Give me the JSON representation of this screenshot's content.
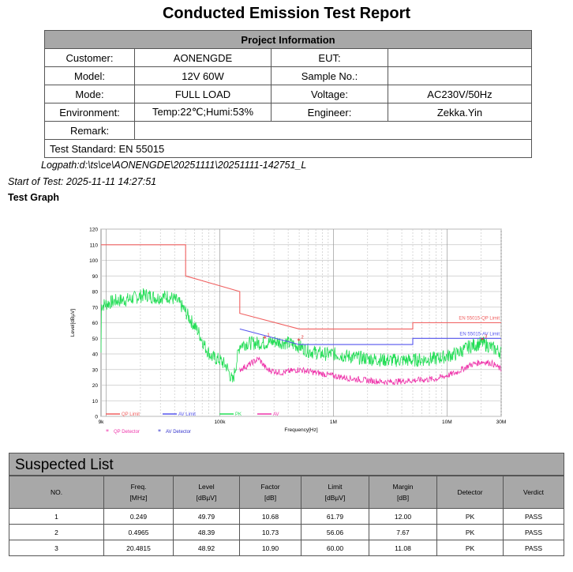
{
  "report": {
    "title": "Conducted Emission Test Report",
    "project_heading": "Project Information",
    "rows": [
      {
        "k1": "Customer:",
        "v1": "AONENGDE",
        "k2": "EUT:",
        "v2": ""
      },
      {
        "k1": "Model:",
        "v1": "12V 60W",
        "k2": "Sample No.:",
        "v2": ""
      },
      {
        "k1": "Mode:",
        "v1": "FULL LOAD",
        "k2": "Voltage:",
        "v2": "AC230V/50Hz"
      },
      {
        "k1": "Environment:",
        "v1": "Temp:22℃;Humi:53%",
        "k2": "Engineer:",
        "v2": "Zekka.Yin"
      }
    ],
    "remark_label": "Remark:",
    "remark_value": "",
    "test_standard": "Test Standard: EN 55015",
    "logpath": "Logpath:d:\\ts\\ce\\AONENGDE\\20251111\\20251111-142751_L",
    "start": "Start of Test: 2025-11-11 14:27:51",
    "graph_heading": "Test Graph"
  },
  "chart_data": {
    "type": "line",
    "xlabel": "Frequency[Hz]",
    "ylabel": "Level[dBµV]",
    "xscale": "log",
    "xlim": [
      9000,
      30000000
    ],
    "ylim": [
      0,
      120
    ],
    "x_ticks": [
      {
        "v": 9000,
        "label": "9k"
      },
      {
        "v": 100000,
        "label": "100k"
      },
      {
        "v": 1000000,
        "label": "1M"
      },
      {
        "v": 10000000,
        "label": "10M"
      },
      {
        "v": 30000000,
        "label": "30M"
      }
    ],
    "y_ticks": [
      0,
      10,
      20,
      30,
      40,
      50,
      60,
      70,
      80,
      90,
      100,
      110,
      120
    ],
    "grid": true,
    "colors": {
      "qp_limit": "#f06060",
      "av_limit": "#5555ee",
      "peak": "#22dd55",
      "av_trace": "#ee33aa",
      "qp_marker": "#e01818",
      "av_marker": "#2222cc"
    },
    "series": [
      {
        "name": "EN 55015-QP Limit",
        "points": [
          [
            9000,
            110
          ],
          [
            50000,
            110
          ],
          [
            50000,
            90
          ],
          [
            150000,
            80
          ],
          [
            150000,
            66
          ],
          [
            500000,
            56
          ],
          [
            5000000,
            56
          ],
          [
            5000000,
            60
          ],
          [
            30000000,
            60
          ]
        ]
      },
      {
        "name": "EN 55015-AV Limit",
        "points": [
          [
            150000,
            56
          ],
          [
            500000,
            46
          ],
          [
            5000000,
            46
          ],
          [
            5000000,
            50
          ],
          [
            30000000,
            50
          ]
        ]
      }
    ],
    "peak_trace": [
      [
        9000,
        71
      ],
      [
        12000,
        74
      ],
      [
        16000,
        75
      ],
      [
        22000,
        78
      ],
      [
        28000,
        76
      ],
      [
        35000,
        77
      ],
      [
        42000,
        74
      ],
      [
        48000,
        69
      ],
      [
        55000,
        62
      ],
      [
        65000,
        54
      ],
      [
        75000,
        44
      ],
      [
        85000,
        38
      ],
      [
        100000,
        36
      ],
      [
        115000,
        32
      ],
      [
        130000,
        22
      ],
      [
        150000,
        46
      ],
      [
        180000,
        47
      ],
      [
        249000,
        47
      ],
      [
        300000,
        48
      ],
      [
        400000,
        47
      ],
      [
        500000,
        45
      ],
      [
        600000,
        42
      ],
      [
        800000,
        40
      ],
      [
        1000000,
        40
      ],
      [
        1500000,
        38
      ],
      [
        2000000,
        37
      ],
      [
        3000000,
        36
      ],
      [
        5000000,
        36
      ],
      [
        8000000,
        37
      ],
      [
        12000000,
        40
      ],
      [
        16000000,
        45
      ],
      [
        20480000,
        47
      ],
      [
        25000000,
        44
      ],
      [
        30000000,
        41
      ]
    ],
    "av_trace": [
      [
        150000,
        30
      ],
      [
        180000,
        33
      ],
      [
        220000,
        37
      ],
      [
        260000,
        30
      ],
      [
        350000,
        28
      ],
      [
        497000,
        30
      ],
      [
        700000,
        28
      ],
      [
        1000000,
        26
      ],
      [
        1500000,
        24
      ],
      [
        2000000,
        23
      ],
      [
        3000000,
        22
      ],
      [
        5000000,
        23
      ],
      [
        8000000,
        24
      ],
      [
        12000000,
        28
      ],
      [
        16000000,
        33
      ],
      [
        20480000,
        35
      ],
      [
        25000000,
        34
      ],
      [
        30000000,
        30
      ]
    ],
    "markers": [
      {
        "label": "1",
        "x": 249000,
        "y": 49.79
      },
      {
        "label": "2",
        "x": 496500,
        "y": 48.39
      },
      {
        "label": "3",
        "x": 20481500,
        "y": 48.92
      }
    ],
    "legend_top": [
      {
        "name": "QP Limit",
        "color": "#f06060"
      },
      {
        "name": "AV Limit",
        "color": "#5555ee"
      },
      {
        "name": "PK",
        "color": "#22dd55"
      },
      {
        "name": "AV",
        "color": "#ee33aa"
      }
    ],
    "legend_bottom": [
      {
        "name": "QP Detector",
        "color": "#ee33aa",
        "symbol": "*"
      },
      {
        "name": "AV Detector",
        "color": "#3333cc",
        "symbol": "*"
      }
    ]
  },
  "suspect": {
    "title": "Suspected List",
    "headers": [
      {
        "l1": "NO.",
        "l2": ""
      },
      {
        "l1": "Freq.",
        "l2": "[MHz]"
      },
      {
        "l1": "Level",
        "l2": "[dBµV]"
      },
      {
        "l1": "Factor",
        "l2": "[dB]"
      },
      {
        "l1": "Limit",
        "l2": "[dBµV]"
      },
      {
        "l1": "Margin",
        "l2": "[dB]"
      },
      {
        "l1": "Detector",
        "l2": ""
      },
      {
        "l1": "Verdict",
        "l2": ""
      }
    ],
    "rows": [
      [
        "1",
        "0.249",
        "49.79",
        "10.68",
        "61.79",
        "12.00",
        "PK",
        "PASS"
      ],
      [
        "2",
        "0.4965",
        "48.39",
        "10.73",
        "56.06",
        "7.67",
        "PK",
        "PASS"
      ],
      [
        "3",
        "20.4815",
        "48.92",
        "10.90",
        "60.00",
        "11.08",
        "PK",
        "PASS"
      ]
    ]
  }
}
